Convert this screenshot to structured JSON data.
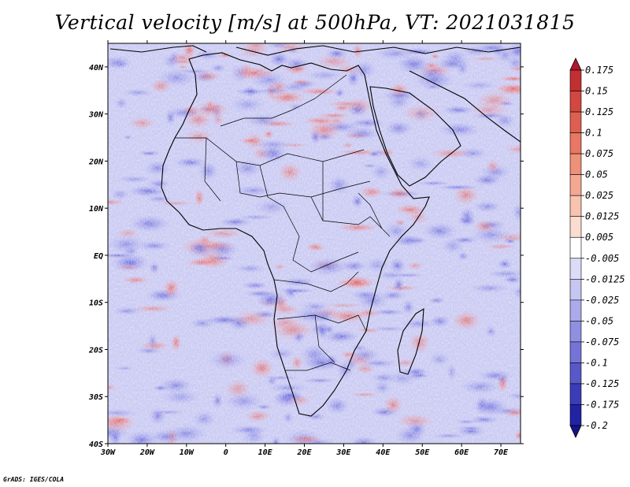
{
  "title": "Vertical velocity [m/s] at 500hPa, VT: 2021031815",
  "credit": "GrADS: IGES/COLA",
  "map": {
    "lon_range": [
      -30,
      75
    ],
    "lat_range": [
      -40,
      45
    ],
    "lon_ticks": [
      {
        "value": -30,
        "label": "30W"
      },
      {
        "value": -20,
        "label": "20W"
      },
      {
        "value": -10,
        "label": "10W"
      },
      {
        "value": 0,
        "label": "0"
      },
      {
        "value": 10,
        "label": "10E"
      },
      {
        "value": 20,
        "label": "20E"
      },
      {
        "value": 30,
        "label": "30E"
      },
      {
        "value": 40,
        "label": "40E"
      },
      {
        "value": 50,
        "label": "50E"
      },
      {
        "value": 60,
        "label": "60E"
      },
      {
        "value": 70,
        "label": "70E"
      }
    ],
    "lat_ticks": [
      {
        "value": 40,
        "label": "40N"
      },
      {
        "value": 30,
        "label": "30N"
      },
      {
        "value": 20,
        "label": "20N"
      },
      {
        "value": 10,
        "label": "10N"
      },
      {
        "value": 0,
        "label": "EQ"
      },
      {
        "value": -10,
        "label": "10S"
      },
      {
        "value": -20,
        "label": "20S"
      },
      {
        "value": -30,
        "label": "30S"
      },
      {
        "value": -40,
        "label": "40S"
      }
    ]
  },
  "colorbar": {
    "labels": [
      "0.175",
      "0.15",
      "0.125",
      "0.1",
      "0.075",
      "0.05",
      "0.025",
      "0.0125",
      "0.005",
      "-0.005",
      "-0.0125",
      "-0.025",
      "-0.05",
      "-0.075",
      "-0.1",
      "-0.125",
      "-0.175",
      "-0.2"
    ],
    "colors": [
      "#b2182b",
      "#c32e32",
      "#d2473f",
      "#de5e52",
      "#e87764",
      "#ef9078",
      "#f4a892",
      "#f8c3b0",
      "#fbdcd0",
      "#ffffff",
      "#dcdcf8",
      "#c6c6f2",
      "#ababeb",
      "#9090e2",
      "#7474d6",
      "#5858c8",
      "#3c3cb8",
      "#2222a4",
      "#14148a"
    ]
  }
}
